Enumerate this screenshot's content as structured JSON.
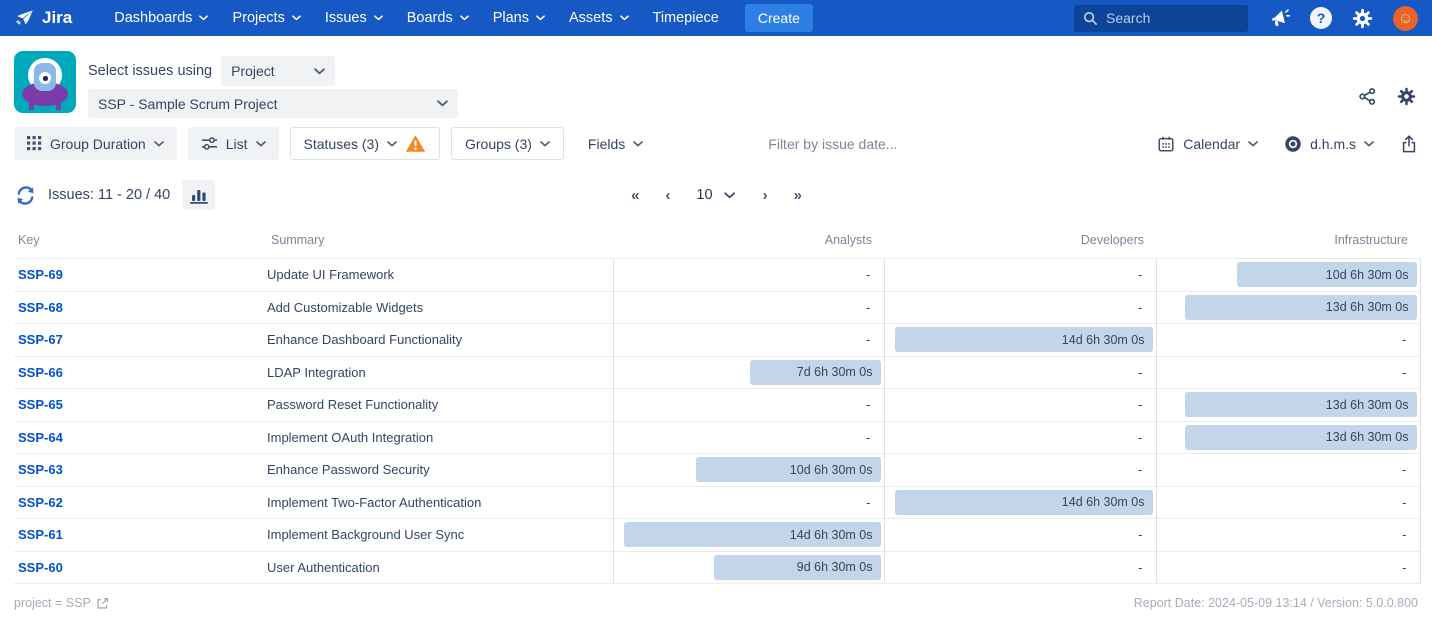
{
  "colors": {
    "navbar": "#1659C4",
    "create_button": "#2E7FE4",
    "link": "#0052CC",
    "duration_bar": "#C3D5E8",
    "warning": "#F38A1F",
    "avatar": "#E8622F"
  },
  "navbar": {
    "logo_text": "Jira",
    "menus": [
      {
        "label": "Dashboards",
        "chevron": true
      },
      {
        "label": "Projects",
        "chevron": true
      },
      {
        "label": "Issues",
        "chevron": true
      },
      {
        "label": "Boards",
        "chevron": true
      },
      {
        "label": "Plans",
        "chevron": true
      },
      {
        "label": "Assets",
        "chevron": true
      },
      {
        "label": "Timepiece",
        "chevron": false
      }
    ],
    "create_label": "Create",
    "search_placeholder": "Search"
  },
  "header": {
    "select_label": "Select issues using",
    "mode_value": "Project",
    "project_value": "SSP - Sample Scrum Project"
  },
  "toolbar": {
    "group_duration_label": "Group Duration",
    "view_label": "List",
    "statuses_label": "Statuses (3)",
    "groups_label": "Groups (3)",
    "fields_label": "Fields",
    "date_filter_placeholder": "Filter by issue date...",
    "calendar_label": "Calendar",
    "duration_format_label": "d.h.m.s"
  },
  "issues_bar": {
    "issues_label": "Issues: 11 - 20 / 40",
    "page_size": "10",
    "first": "«",
    "prev": "‹",
    "next": "›",
    "last": "»"
  },
  "table": {
    "columns": [
      "Key",
      "Summary",
      "Analysts",
      "Developers",
      "Infrastructure"
    ],
    "max_days": 14.27,
    "rows": [
      {
        "key": "SSP-69",
        "summary": "Update UI Framework",
        "cells": [
          null,
          null,
          {
            "label": "10d 6h 30m 0s",
            "days": 10.27
          }
        ]
      },
      {
        "key": "SSP-68",
        "summary": "Add Customizable Widgets",
        "cells": [
          null,
          null,
          {
            "label": "13d 6h 30m 0s",
            "days": 13.27
          }
        ]
      },
      {
        "key": "SSP-67",
        "summary": "Enhance Dashboard Functionality",
        "cells": [
          null,
          {
            "label": "14d 6h 30m 0s",
            "days": 14.27
          },
          null
        ]
      },
      {
        "key": "SSP-66",
        "summary": "LDAP Integration",
        "cells": [
          {
            "label": "7d 6h 30m 0s",
            "days": 7.27
          },
          null,
          null
        ]
      },
      {
        "key": "SSP-65",
        "summary": "Password Reset Functionality",
        "cells": [
          null,
          null,
          {
            "label": "13d 6h 30m 0s",
            "days": 13.27
          }
        ]
      },
      {
        "key": "SSP-64",
        "summary": "Implement OAuth Integration",
        "cells": [
          null,
          null,
          {
            "label": "13d 6h 30m 0s",
            "days": 13.27
          }
        ]
      },
      {
        "key": "SSP-63",
        "summary": "Enhance Password Security",
        "cells": [
          {
            "label": "10d 6h 30m 0s",
            "days": 10.27
          },
          null,
          null
        ]
      },
      {
        "key": "SSP-62",
        "summary": "Implement Two-Factor Authentication",
        "cells": [
          null,
          {
            "label": "14d 6h 30m 0s",
            "days": 14.27
          },
          null
        ]
      },
      {
        "key": "SSP-61",
        "summary": "Implement Background User Sync",
        "cells": [
          {
            "label": "14d 6h 30m 0s",
            "days": 14.27
          },
          null,
          null
        ]
      },
      {
        "key": "SSP-60",
        "summary": "User Authentication",
        "cells": [
          {
            "label": "9d 6h 30m 0s",
            "days": 9.27
          },
          null,
          null
        ]
      }
    ]
  },
  "footer": {
    "query_label": "project = SSP",
    "report_label": "Report Date: 2024-05-09 13:14 / Version: 5.0.0.800"
  }
}
